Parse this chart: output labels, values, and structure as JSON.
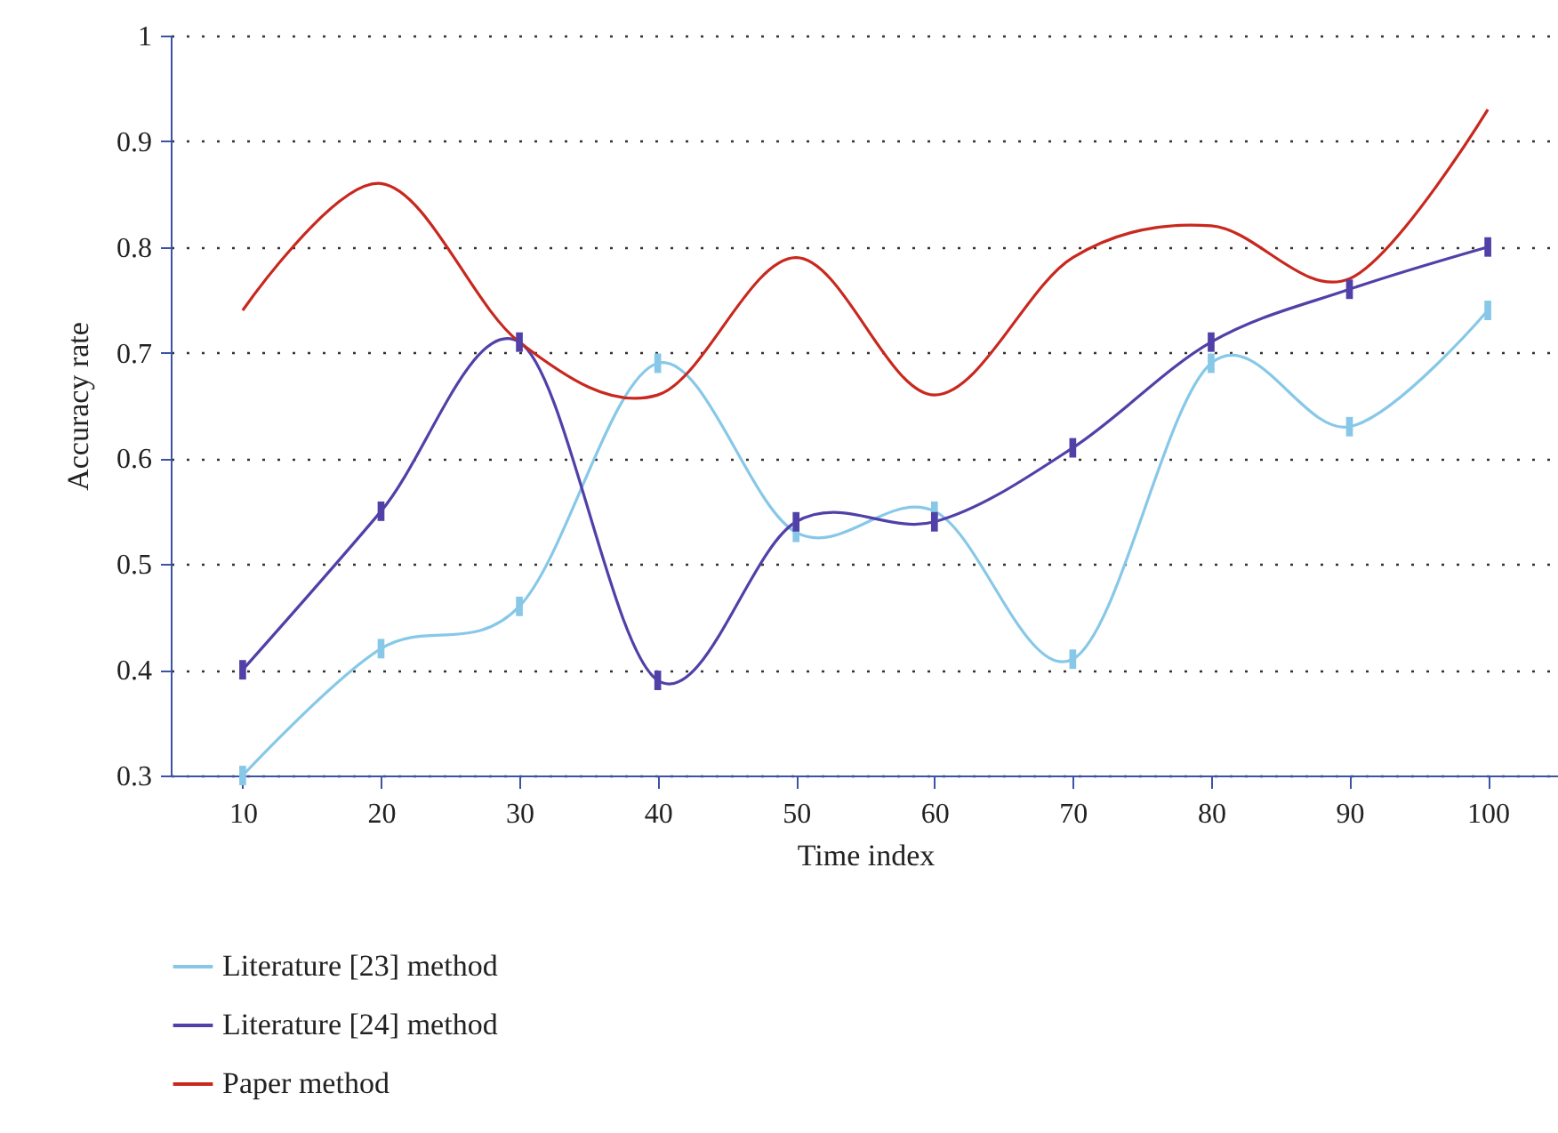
{
  "chart_data": {
    "type": "line",
    "xlabel": "Time index",
    "ylabel": "Accuracy rate",
    "categories": [
      "10",
      "20",
      "30",
      "40",
      "50",
      "60",
      "70",
      "80",
      "90",
      "100"
    ],
    "ylim": [
      0.3,
      1
    ],
    "yticks": [
      0.3,
      0.4,
      0.5,
      0.6,
      0.7,
      0.8,
      0.9,
      1
    ],
    "grid": "y",
    "legend": "bottom",
    "line_style": "solid",
    "series": [
      {
        "name": "Literature [23] method",
        "color": "#87c8e8",
        "marker": "square",
        "values": [
          0.3,
          0.42,
          0.46,
          0.69,
          0.53,
          0.55,
          0.41,
          0.69,
          0.63,
          0.74
        ]
      },
      {
        "name": "Literature [24] method",
        "color": "#5040a8",
        "marker": "square",
        "values": [
          0.4,
          0.55,
          0.71,
          0.39,
          0.54,
          0.54,
          0.61,
          0.71,
          0.76,
          0.8
        ]
      },
      {
        "name": "Paper method",
        "color": "#c8281e",
        "marker": "none",
        "values": [
          0.74,
          0.86,
          0.71,
          0.66,
          0.79,
          0.66,
          0.79,
          0.82,
          0.77,
          0.93
        ]
      }
    ]
  }
}
